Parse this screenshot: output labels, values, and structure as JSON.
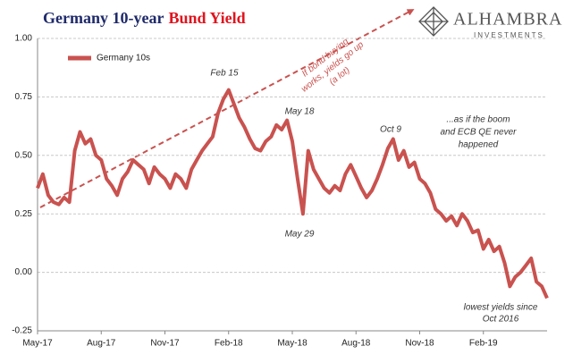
{
  "chart_data": {
    "type": "line",
    "title": "Germany 10-year",
    "title_emphasis": "Bund Yield",
    "logo": {
      "name": "ALHAMBRA",
      "tagline": "INVESTMENTS"
    },
    "annotations": [
      {
        "lines": [
          "Feb 15"
        ]
      },
      {
        "lines": [
          "May 18"
        ]
      },
      {
        "lines": [
          "May 29"
        ]
      },
      {
        "lines": [
          "Oct 9"
        ]
      },
      {
        "lines": [
          "...as if the boom",
          "and ECB QE never",
          "happened"
        ]
      },
      {
        "lines": [
          "If bond buying",
          "works, yields go up",
          "(a lot)"
        ]
      },
      {
        "lines": [
          "lowest yields since",
          "Oct 2016"
        ]
      }
    ],
    "x": [
      0,
      0.25,
      0.5,
      0.75,
      1,
      1.25,
      1.5,
      1.75,
      2,
      2.25,
      2.5,
      2.75,
      3,
      3.25,
      3.5,
      3.75,
      4,
      4.25,
      4.5,
      4.75,
      5,
      5.25,
      5.5,
      5.75,
      6,
      6.25,
      6.5,
      6.75,
      7,
      7.25,
      7.5,
      7.75,
      8,
      8.25,
      8.5,
      8.75,
      9,
      9.25,
      9.5,
      9.75,
      10,
      10.25,
      10.5,
      10.75,
      11,
      11.25,
      11.5,
      11.75,
      12,
      12.25,
      12.5,
      12.75,
      13,
      13.25,
      13.5,
      13.75,
      14,
      14.25,
      14.5,
      14.75,
      15,
      15.25,
      15.5,
      15.75,
      16,
      16.25,
      16.5,
      16.75,
      17,
      17.25,
      17.5,
      17.75,
      18,
      18.25,
      18.5,
      18.75,
      19,
      19.25,
      19.5,
      19.75,
      20,
      20.25,
      20.5,
      20.75,
      21,
      21.25,
      21.5,
      21.75,
      22,
      22.25,
      22.5,
      22.75,
      23,
      23.25,
      23.5,
      23.75,
      24
    ],
    "series": [
      {
        "name": "Germany 10s",
        "color": "#c9524f",
        "values": [
          0.36,
          0.42,
          0.33,
          0.3,
          0.29,
          0.32,
          0.3,
          0.52,
          0.6,
          0.55,
          0.57,
          0.5,
          0.48,
          0.4,
          0.37,
          0.33,
          0.4,
          0.43,
          0.48,
          0.46,
          0.44,
          0.38,
          0.45,
          0.42,
          0.4,
          0.36,
          0.42,
          0.4,
          0.36,
          0.44,
          0.48,
          0.52,
          0.55,
          0.58,
          0.68,
          0.74,
          0.78,
          0.72,
          0.66,
          0.62,
          0.57,
          0.53,
          0.52,
          0.56,
          0.58,
          0.63,
          0.61,
          0.65,
          0.56,
          0.4,
          0.25,
          0.52,
          0.44,
          0.4,
          0.36,
          0.34,
          0.37,
          0.35,
          0.42,
          0.46,
          0.41,
          0.36,
          0.32,
          0.35,
          0.4,
          0.46,
          0.53,
          0.57,
          0.48,
          0.52,
          0.45,
          0.47,
          0.4,
          0.38,
          0.34,
          0.27,
          0.25,
          0.22,
          0.24,
          0.2,
          0.25,
          0.22,
          0.17,
          0.18,
          0.1,
          0.14,
          0.09,
          0.11,
          0.04,
          -0.06,
          -0.02,
          0.0,
          0.03,
          0.06,
          -0.04,
          -0.06,
          -0.11
        ]
      }
    ],
    "xlim": [
      0,
      24
    ],
    "xticks": [
      {
        "value": 0,
        "label": "May-17"
      },
      {
        "value": 3,
        "label": "Aug-17"
      },
      {
        "value": 6,
        "label": "Nov-17"
      },
      {
        "value": 9,
        "label": "Feb-18"
      },
      {
        "value": 12,
        "label": "May-18"
      },
      {
        "value": 15,
        "label": "Aug-18"
      },
      {
        "value": 18,
        "label": "Nov-18"
      },
      {
        "value": 21,
        "label": "Feb-19"
      }
    ],
    "ylim": [
      -0.25,
      1
    ],
    "yticks": [
      {
        "value": 1,
        "label": "1.00"
      },
      0.75,
      {
        "value": 0.5,
        "label": "0.50"
      },
      0.25,
      {
        "value": 0,
        "label": "0.00"
      },
      -0.25
    ],
    "grid": true,
    "legend": "top-left"
  }
}
